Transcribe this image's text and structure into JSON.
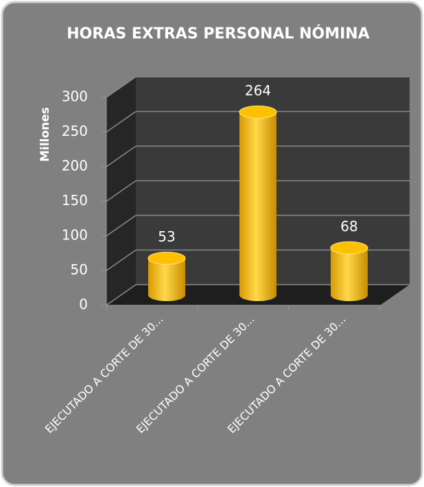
{
  "chart_data": {
    "type": "bar3d",
    "title": "HORAS EXTRAS PERSONAL NÓMINA",
    "y_label": "Millones",
    "categories": [
      "EJECUTADO A CORTE DE 30...",
      "EJECUTADO A CORTE DE 30...",
      "EJECUTADO A CORTE DE 30..."
    ],
    "values": [
      53,
      264,
      68
    ],
    "color": "#ffc000",
    "ylim": [
      0,
      300
    ],
    "yticks": [
      0,
      50,
      100,
      150,
      200,
      250,
      300
    ],
    "grid": true
  }
}
